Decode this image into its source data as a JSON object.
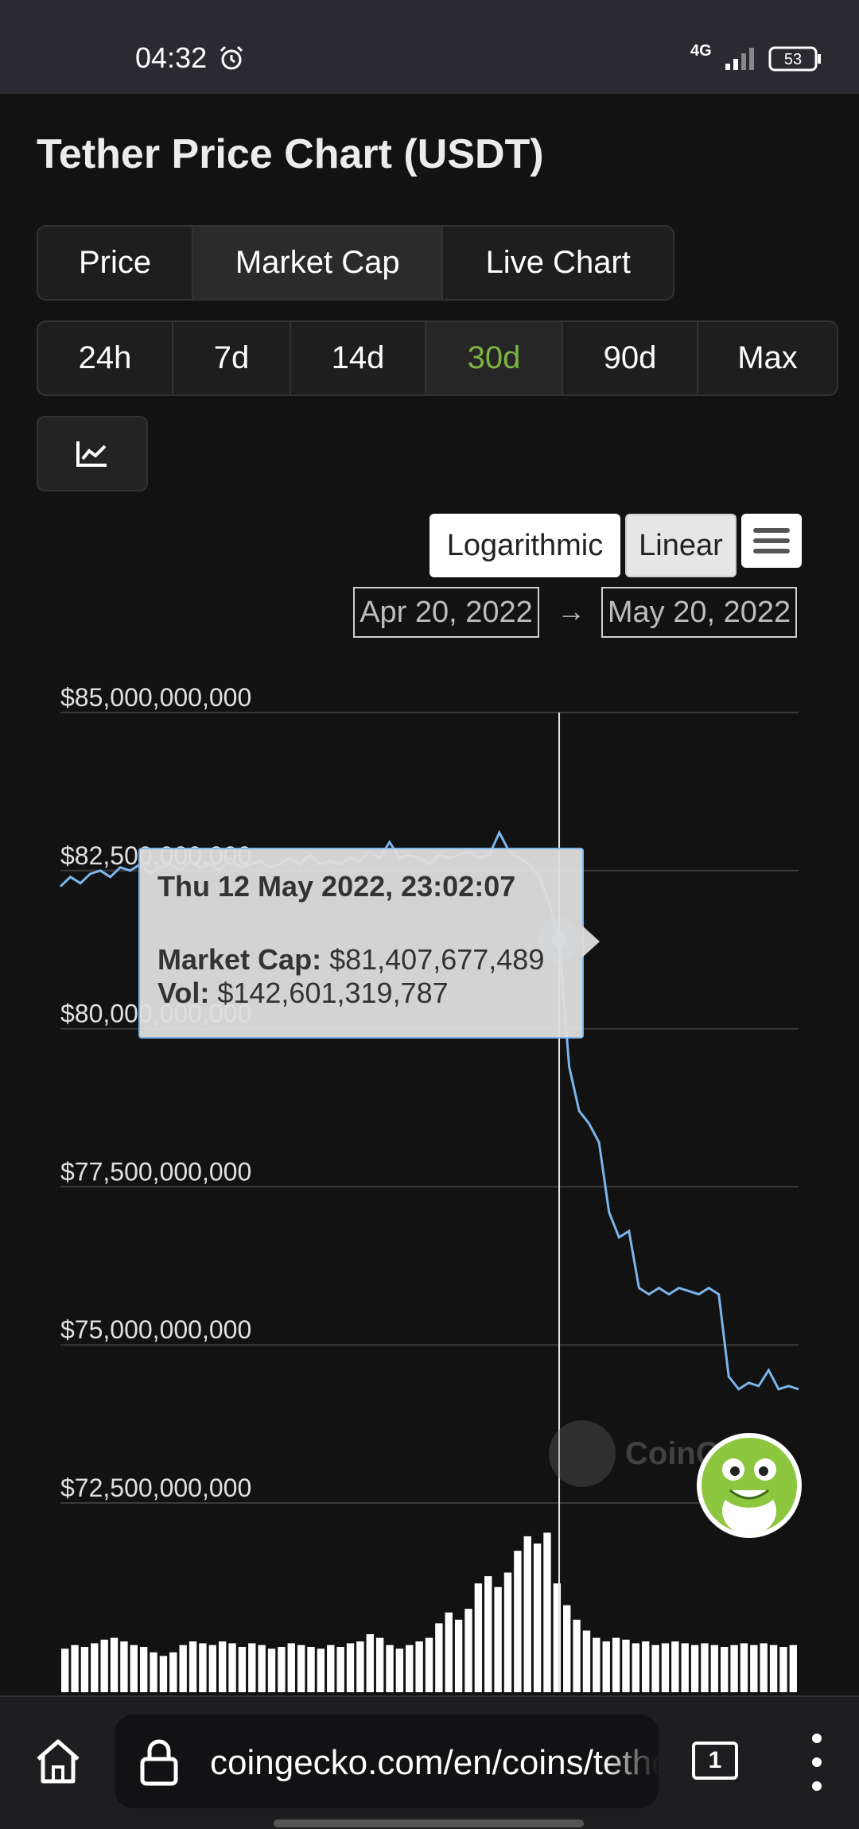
{
  "status_bar": {
    "time": "04:32",
    "network": "4G",
    "battery": "53",
    "icons": [
      "alarm-icon",
      "signal-icon",
      "battery-icon"
    ]
  },
  "page": {
    "title": "Tether Price Chart (USDT)",
    "tabs": [
      {
        "label": "Price",
        "active": false
      },
      {
        "label": "Market Cap",
        "active": true
      },
      {
        "label": "Live Chart",
        "active": false
      }
    ],
    "ranges": [
      {
        "label": "24h",
        "active": false
      },
      {
        "label": "7d",
        "active": false
      },
      {
        "label": "14d",
        "active": false
      },
      {
        "label": "30d",
        "active": true
      },
      {
        "label": "90d",
        "active": false
      },
      {
        "label": "Max",
        "active": false
      }
    ],
    "chart_type_icon": "line-chart-icon",
    "scale": {
      "log_label": "Logarithmic",
      "linear_label": "Linear",
      "selected": "Linear"
    },
    "menu_icon": "hamburger-menu-icon",
    "date_from": "Apr 20, 2022",
    "date_arrow": "→",
    "date_to": "May 20, 2022",
    "accent_color": "#7cb342",
    "line_color": "#7cb5ec"
  },
  "chart_data": {
    "type": "line",
    "title": "",
    "xlabel": "",
    "ylabel": "",
    "y_ticks": [
      "$85,000,000,000",
      "$82,500,000,000",
      "$80,000,000,000",
      "$77,500,000,000",
      "$75,000,000,000",
      "$72,500,000,000"
    ],
    "y_tick_values": [
      85000000000,
      82500000000,
      80000000000,
      77500000000,
      75000000000,
      72500000000
    ],
    "ylim": [
      72500000000,
      85000000000
    ],
    "x_range": [
      "Apr 20, 2022",
      "May 20, 2022"
    ],
    "series": [
      {
        "values": [
          82.25,
          82.4,
          82.3,
          82.45,
          82.5,
          82.4,
          82.55,
          82.5,
          82.6,
          82.45,
          82.55,
          82.6,
          82.5,
          82.65,
          82.55,
          82.6,
          82.5,
          82.7,
          82.55,
          82.6,
          82.65,
          82.55,
          82.6,
          82.7,
          82.6,
          82.75,
          82.6,
          82.65,
          82.6,
          82.7,
          82.65,
          82.8,
          82.7,
          82.95,
          82.7,
          82.75,
          82.7,
          82.6,
          82.75,
          82.7,
          82.75,
          82.8,
          82.7,
          82.75,
          83.1,
          82.8,
          82.7,
          82.6,
          82.4,
          82.0,
          81.4,
          79.4,
          78.7,
          78.5,
          78.2,
          77.1,
          76.7,
          76.8,
          75.9,
          75.8,
          75.9,
          75.8,
          75.9,
          75.85,
          75.8,
          75.9,
          75.8,
          74.5,
          74.3,
          74.4,
          74.35,
          74.6,
          74.3,
          74.35,
          74.3
        ],
        "unit": "USD billions"
      }
    ],
    "volume": [
      0.24,
      0.26,
      0.25,
      0.27,
      0.29,
      0.3,
      0.28,
      0.26,
      0.25,
      0.22,
      0.2,
      0.22,
      0.26,
      0.28,
      0.27,
      0.26,
      0.28,
      0.27,
      0.25,
      0.27,
      0.26,
      0.24,
      0.25,
      0.27,
      0.26,
      0.25,
      0.24,
      0.26,
      0.25,
      0.27,
      0.28,
      0.32,
      0.3,
      0.26,
      0.24,
      0.26,
      0.28,
      0.3,
      0.38,
      0.44,
      0.4,
      0.46,
      0.6,
      0.64,
      0.58,
      0.66,
      0.78,
      0.86,
      0.82,
      0.88,
      0.6,
      0.48,
      0.4,
      0.34,
      0.3,
      0.28,
      0.3,
      0.29,
      0.27,
      0.28,
      0.26,
      0.27,
      0.28,
      0.27,
      0.26,
      0.27,
      0.26,
      0.25,
      0.26,
      0.27,
      0.26,
      0.27,
      0.26,
      0.25,
      0.26
    ],
    "tooltip": {
      "date": "Thu 12 May 2022, 23:02:07",
      "market_cap_label": "Market Cap:",
      "market_cap_value": "$81,407,677,489",
      "vol_label": "Vol:",
      "vol_value": "$142,601,319,787",
      "x_index": 50,
      "y_value": 81.4
    },
    "grid": true,
    "legend": "none"
  },
  "watermark": {
    "text": "CoinG"
  },
  "browser": {
    "url": "coingecko.com/en/coins/tether",
    "tab_count": "1",
    "icons": [
      "home-icon",
      "lock-icon",
      "tabs-icon",
      "more-vert-icon"
    ]
  }
}
